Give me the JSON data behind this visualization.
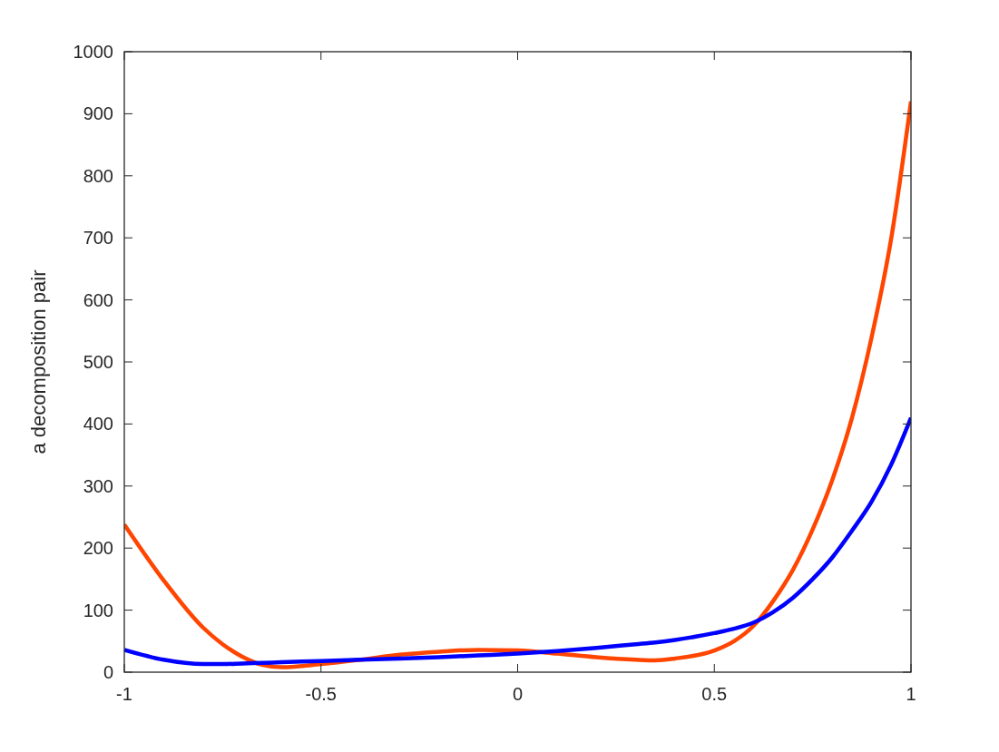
{
  "chart_data": {
    "type": "line",
    "ylabel": "a decomposition pair",
    "x": [
      -1,
      -0.9,
      -0.8,
      -0.75,
      -0.7,
      -0.65,
      -0.6,
      -0.5,
      -0.4,
      -0.3,
      -0.2,
      -0.1,
      0,
      0.1,
      0.2,
      0.3,
      0.35,
      0.4,
      0.5,
      0.55,
      0.6,
      0.65,
      0.7,
      0.75,
      0.8,
      0.85,
      0.9,
      0.95,
      1
    ],
    "series": [
      {
        "color": "#ff4500",
        "values": [
          238,
          148,
          72,
          45,
          25,
          12,
          8,
          13,
          20,
          28,
          33,
          36,
          35,
          30,
          24,
          20,
          19,
          22,
          35,
          50,
          75,
          115,
          165,
          230,
          310,
          410,
          540,
          700,
          920
        ]
      },
      {
        "color": "#0000ff",
        "values": [
          36,
          20,
          13,
          13,
          14,
          15,
          16,
          18,
          20,
          22,
          24,
          27,
          30,
          34,
          39,
          45,
          48,
          52,
          63,
          70,
          80,
          97,
          120,
          150,
          185,
          228,
          275,
          335,
          410
        ]
      }
    ],
    "xlim": [
      -1,
      1
    ],
    "xticks": [
      -1,
      -0.5,
      0,
      0.5,
      1
    ],
    "ylim": [
      0,
      1000
    ],
    "yticks": [
      0,
      100,
      200,
      300,
      400,
      500,
      600,
      700,
      800,
      900,
      1000
    ],
    "line_style": "solid"
  }
}
